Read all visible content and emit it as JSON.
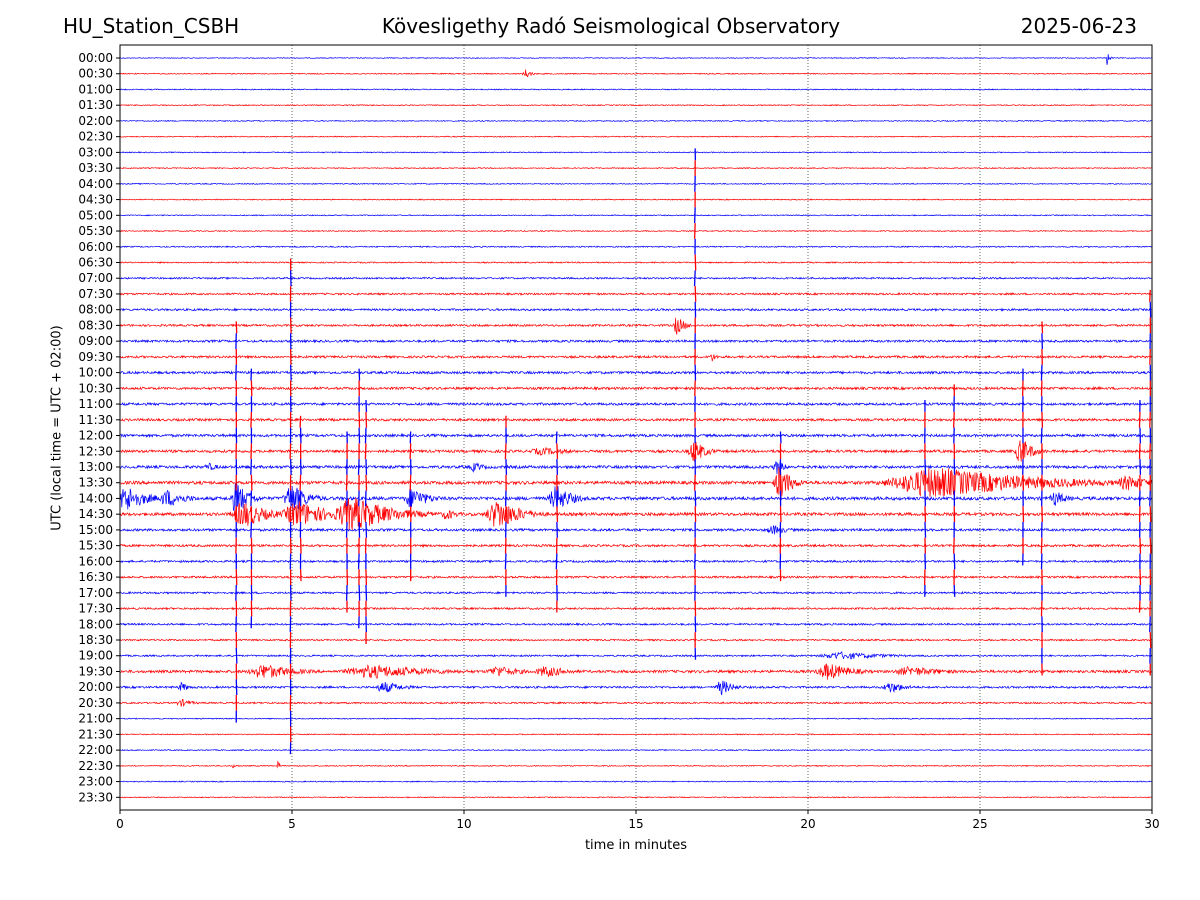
{
  "header": {
    "station": "HU_Station_CSBH",
    "observatory": "Kövesligethy Radó Seismological Observatory",
    "date": "2025-06-23"
  },
  "chart_data": {
    "type": "line",
    "title": "Kövesligethy Radó Seismological Observatory",
    "xlabel": "time in minutes",
    "ylabel": "UTC (local time = UTC + 02:00)",
    "xlim": [
      0,
      30
    ],
    "xticks": [
      0,
      5,
      10,
      15,
      20,
      25,
      30
    ],
    "grid": "vertical dotted at 5-minute ticks",
    "colors": [
      "#0000ff",
      "#ff0000"
    ],
    "rows": [
      "00:00",
      "00:30",
      "01:00",
      "01:30",
      "02:00",
      "02:30",
      "03:00",
      "03:30",
      "04:00",
      "04:30",
      "05:00",
      "05:30",
      "06:00",
      "06:30",
      "07:00",
      "07:30",
      "08:00",
      "08:30",
      "09:00",
      "09:30",
      "10:00",
      "10:30",
      "11:00",
      "11:30",
      "12:00",
      "12:30",
      "13:00",
      "13:30",
      "14:00",
      "14:30",
      "15:00",
      "15:30",
      "16:00",
      "16:30",
      "17:00",
      "17:30",
      "18:00",
      "18:30",
      "19:00",
      "19:30",
      "20:00",
      "20:30",
      "21:00",
      "21:30",
      "22:00",
      "22:30",
      "23:00",
      "23:30"
    ],
    "noise_level": [
      0.4,
      0.5,
      0.5,
      0.5,
      0.5,
      0.5,
      0.5,
      0.5,
      0.5,
      0.5,
      0.5,
      0.5,
      0.6,
      0.6,
      0.8,
      0.9,
      1.0,
      1.0,
      1.1,
      1.1,
      1.2,
      1.2,
      1.2,
      1.2,
      1.3,
      1.3,
      1.4,
      1.6,
      1.6,
      1.5,
      1.2,
      1.1,
      1.0,
      1.0,
      0.9,
      0.9,
      0.9,
      0.8,
      0.8,
      1.3,
      1.0,
      0.8,
      0.5,
      0.5,
      0.5,
      0.5,
      0.5,
      0.5
    ],
    "events": [
      {
        "row": "00:00",
        "t": 28.7,
        "amp": 8,
        "dur": 0.06
      },
      {
        "row": "00:30",
        "t": 11.8,
        "amp": 5,
        "dur": 0.15
      },
      {
        "row": "08:30",
        "t": 16.2,
        "amp": 10,
        "dur": 0.2
      },
      {
        "row": "09:30",
        "t": 17.2,
        "amp": 5,
        "dur": 0.15
      },
      {
        "row": "12:30",
        "t": 16.7,
        "amp": 12,
        "dur": 0.3
      },
      {
        "row": "12:30",
        "t": 12.3,
        "amp": 4,
        "dur": 0.8
      },
      {
        "row": "12:30",
        "t": 26.2,
        "amp": 14,
        "dur": 0.3
      },
      {
        "row": "13:00",
        "t": 2.6,
        "amp": 4,
        "dur": 0.3
      },
      {
        "row": "13:00",
        "t": 10.3,
        "amp": 5,
        "dur": 0.3
      },
      {
        "row": "13:00",
        "t": 19.1,
        "amp": 8,
        "dur": 0.2
      },
      {
        "row": "13:30",
        "t": 19.2,
        "amp": 18,
        "dur": 0.3
      },
      {
        "row": "13:30",
        "t": 23.8,
        "amp": 16,
        "dur": 2.5
      },
      {
        "row": "13:30",
        "t": 29.3,
        "amp": 8,
        "dur": 0.6
      },
      {
        "row": "14:00",
        "t": 0.2,
        "amp": 14,
        "dur": 0.5
      },
      {
        "row": "14:00",
        "t": 1.4,
        "amp": 9,
        "dur": 0.5
      },
      {
        "row": "14:00",
        "t": 3.4,
        "amp": 18,
        "dur": 0.3
      },
      {
        "row": "14:00",
        "t": 5.0,
        "amp": 16,
        "dur": 0.4
      },
      {
        "row": "14:00",
        "t": 8.5,
        "amp": 12,
        "dur": 0.4
      },
      {
        "row": "14:00",
        "t": 12.7,
        "amp": 14,
        "dur": 0.4
      },
      {
        "row": "14:00",
        "t": 27.2,
        "amp": 8,
        "dur": 0.3
      },
      {
        "row": "14:30",
        "t": 3.6,
        "amp": 14,
        "dur": 0.6
      },
      {
        "row": "14:30",
        "t": 5.2,
        "amp": 14,
        "dur": 0.8
      },
      {
        "row": "14:30",
        "t": 6.8,
        "amp": 18,
        "dur": 1.0
      },
      {
        "row": "14:30",
        "t": 9.5,
        "amp": 6,
        "dur": 0.3
      },
      {
        "row": "14:30",
        "t": 11.0,
        "amp": 16,
        "dur": 0.6
      },
      {
        "row": "15:00",
        "t": 19.0,
        "amp": 5,
        "dur": 0.4
      },
      {
        "row": "19:00",
        "t": 21.0,
        "amp": 4,
        "dur": 1.2
      },
      {
        "row": "19:30",
        "t": 4.2,
        "amp": 8,
        "dur": 0.8
      },
      {
        "row": "19:30",
        "t": 7.4,
        "amp": 7,
        "dur": 1.6
      },
      {
        "row": "19:30",
        "t": 11.0,
        "amp": 6,
        "dur": 0.6
      },
      {
        "row": "19:30",
        "t": 12.4,
        "amp": 6,
        "dur": 0.6
      },
      {
        "row": "19:30",
        "t": 20.6,
        "amp": 9,
        "dur": 0.6
      },
      {
        "row": "19:30",
        "t": 23.0,
        "amp": 5,
        "dur": 1.0
      },
      {
        "row": "20:00",
        "t": 1.8,
        "amp": 5,
        "dur": 0.2
      },
      {
        "row": "20:00",
        "t": 7.7,
        "amp": 6,
        "dur": 0.5
      },
      {
        "row": "20:00",
        "t": 17.5,
        "amp": 8,
        "dur": 0.3
      },
      {
        "row": "20:00",
        "t": 22.4,
        "amp": 6,
        "dur": 0.4
      },
      {
        "row": "20:30",
        "t": 1.8,
        "amp": 4,
        "dur": 0.3
      },
      {
        "row": "22:30",
        "t": 3.3,
        "amp": 4,
        "dur": 0.05
      },
      {
        "row": "22:30",
        "t": 4.6,
        "amp": 6,
        "dur": 0.05
      }
    ],
    "spikes": [
      {
        "t": 3.38,
        "from": "08:30",
        "to": "21:00"
      },
      {
        "t": 3.82,
        "from": "10:00",
        "to": "18:00"
      },
      {
        "t": 4.96,
        "from": "06:30",
        "to": "22:00"
      },
      {
        "t": 5.25,
        "from": "11:30",
        "to": "16:30"
      },
      {
        "t": 6.95,
        "from": "10:00",
        "to": "18:00"
      },
      {
        "t": 7.15,
        "from": "11:00",
        "to": "18:30"
      },
      {
        "t": 6.6,
        "from": "12:00",
        "to": "17:30"
      },
      {
        "t": 8.45,
        "from": "12:00",
        "to": "16:30"
      },
      {
        "t": 11.22,
        "from": "11:30",
        "to": "17:00"
      },
      {
        "t": 12.7,
        "from": "12:00",
        "to": "17:30"
      },
      {
        "t": 16.72,
        "from": "03:00",
        "to": "19:00"
      },
      {
        "t": 19.2,
        "from": "12:00",
        "to": "16:30"
      },
      {
        "t": 23.4,
        "from": "11:00",
        "to": "17:00"
      },
      {
        "t": 24.25,
        "from": "10:30",
        "to": "17:00"
      },
      {
        "t": 26.25,
        "from": "10:00",
        "to": "16:00"
      },
      {
        "t": 26.8,
        "from": "08:30",
        "to": "19:30"
      },
      {
        "t": 29.65,
        "from": "11:00",
        "to": "17:30"
      },
      {
        "t": 29.95,
        "from": "07:30",
        "to": "19:30"
      }
    ]
  }
}
